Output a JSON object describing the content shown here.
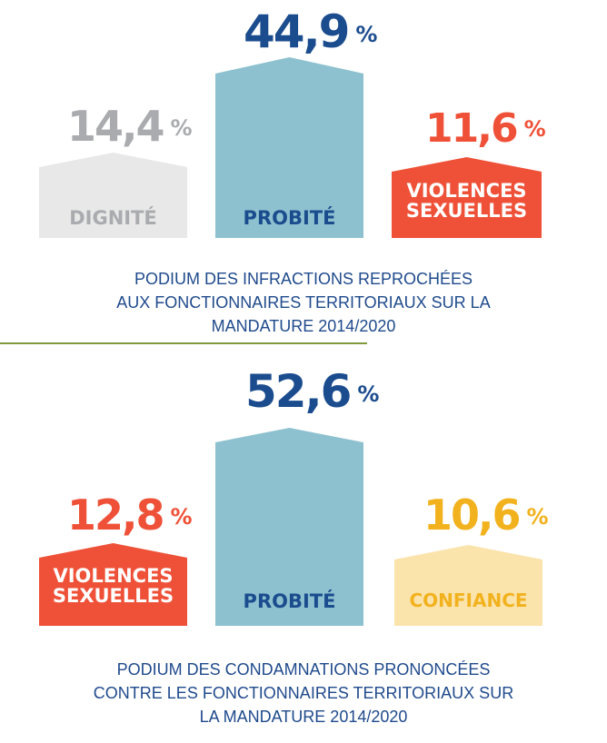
{
  "colors": {
    "navy": "#1b4c8e",
    "blue_block": "#8ec1cf",
    "grey_block": "#e8e8e8",
    "grey_text": "#a9abae",
    "red": "#ef5138",
    "yellow_block": "#fbe3ac",
    "yellow_text": "#f2b21e",
    "divider": "#7f9a3c"
  },
  "chart_data": [
    {
      "type": "bar",
      "title": "PODIUM DES INFRACTIONS REPROCHÉES AUX FONCTIONNAIRES TERRITORIAUX SUR LA MANDATURE 2014/2020",
      "categories": [
        "DIGNITÉ",
        "PROBITÉ",
        "VIOLENCES SEXUELLES"
      ],
      "values": [
        14.4,
        44.9,
        11.6
      ],
      "unit": "%",
      "value_labels": [
        "14,4",
        "44,9",
        "11,6"
      ]
    },
    {
      "type": "bar",
      "title": "PODIUM DES CONDAMNATIONS PRONONCÉES CONTRE LES FONCTIONNAIRES TERRITORIAUX SUR LA MANDATURE 2014/2020",
      "categories": [
        "VIOLENCES SEXUELLES",
        "PROBITÉ",
        "CONFIANCE"
      ],
      "values": [
        12.8,
        52.6,
        10.6
      ],
      "unit": "%",
      "value_labels": [
        "12,8",
        "52,6",
        "10,6"
      ]
    }
  ],
  "podium1": {
    "left": {
      "value": "14,4",
      "unit": "%",
      "label_lines": [
        "DIGNITÉ"
      ]
    },
    "center": {
      "value": "44,9",
      "unit": "%",
      "label_lines": [
        "PROBITÉ"
      ]
    },
    "right": {
      "value": "11,6",
      "unit": "%",
      "label_lines": [
        "VIOLENCES",
        "SEXUELLES"
      ]
    },
    "caption_lines": [
      "PODIUM DES INFRACTIONS REPROCHÉES",
      "AUX FONCTIONNAIRES TERRITORIAUX SUR LA",
      "MANDATURE 2014/2020"
    ]
  },
  "podium2": {
    "left": {
      "value": "12,8",
      "unit": "%",
      "label_lines": [
        "VIOLENCES",
        "SEXUELLES"
      ]
    },
    "center": {
      "value": "52,6",
      "unit": "%",
      "label_lines": [
        "PROBITÉ"
      ]
    },
    "right": {
      "value": "10,6",
      "unit": "%",
      "label_lines": [
        "CONFIANCE"
      ]
    },
    "caption_lines": [
      "PODIUM DES CONDAMNATIONS PRONONCÉES",
      "CONTRE LES FONCTIONNAIRES TERRITORIAUX SUR",
      "LA MANDATURE 2014/2020"
    ]
  }
}
